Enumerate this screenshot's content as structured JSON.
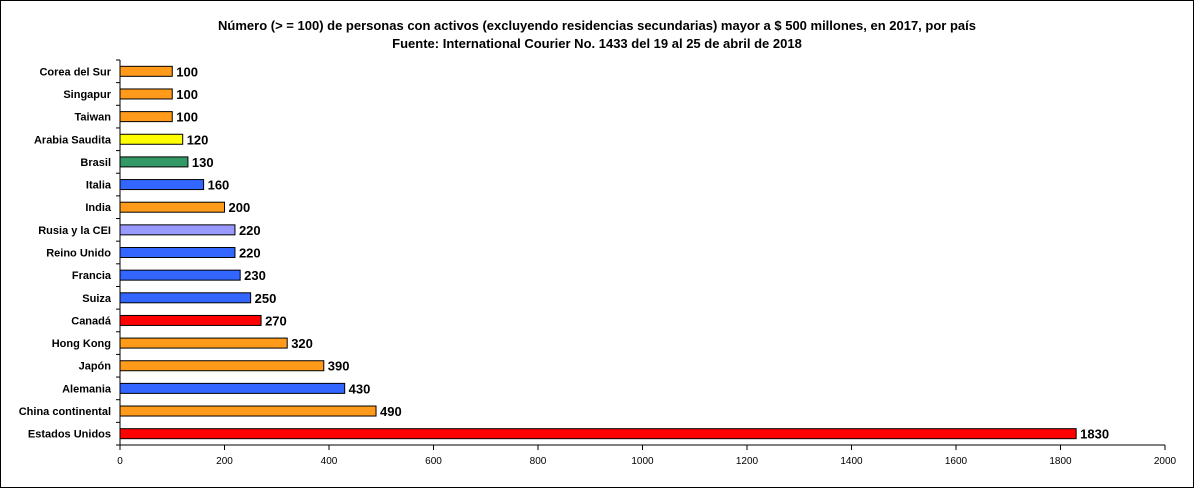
{
  "chart_data": {
    "type": "bar",
    "orientation": "horizontal",
    "title": "Número (> = 100) de personas con activos (excluyendo residencias secundarias) mayor a $ 500 millones, en 2017, por país",
    "subtitle": "Fuente: International Courier No. 1433 del 19 al 25 de abril de 2018",
    "xlabel": "",
    "ylabel": "",
    "xlim": [
      0,
      2000
    ],
    "xticks": [
      "0",
      "200",
      "400",
      "600",
      "800",
      "1000",
      "1200",
      "1400",
      "1600",
      "1800",
      "2000"
    ],
    "grid": false,
    "legend": "none",
    "categories": [
      "Corea del Sur",
      "Singapur",
      "Taiwan",
      "Arabia Saudita",
      "Brasil",
      "Italia",
      "India",
      "Rusia y la CEI",
      "Reino Unido",
      "Francia",
      "Suiza",
      "Canadá",
      "Hong Kong",
      "Japón",
      "Alemania",
      "China continental",
      "Estados Unidos"
    ],
    "values": [
      100,
      100,
      100,
      120,
      130,
      160,
      200,
      220,
      220,
      230,
      250,
      270,
      320,
      390,
      430,
      490,
      1830
    ],
    "colors": [
      "#ff9a1a",
      "#ff9a1a",
      "#ff9a1a",
      "#ffff00",
      "#339966",
      "#3366ff",
      "#ff9a1a",
      "#9999ff",
      "#3366ff",
      "#3366ff",
      "#3366ff",
      "#ff0000",
      "#ff9a1a",
      "#ff9a1a",
      "#3366ff",
      "#ff9a1a",
      "#ff0000"
    ]
  }
}
